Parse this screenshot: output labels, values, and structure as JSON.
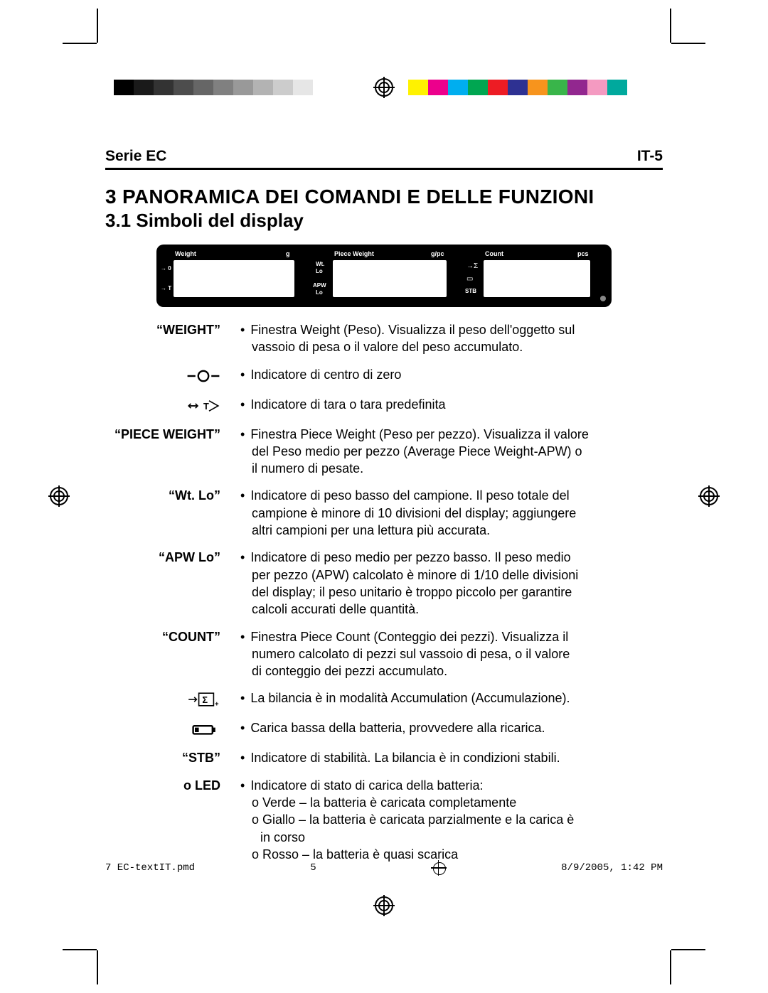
{
  "registration": {
    "gray_swatches": [
      "#000000",
      "#1a1a1a",
      "#333333",
      "#4d4d4d",
      "#666666",
      "#808080",
      "#999999",
      "#b3b3b3",
      "#cccccc",
      "#e6e6e6",
      "#ffffff"
    ],
    "color_swatches": [
      "#fff200",
      "#ec008c",
      "#00aeef",
      "#00a651",
      "#ed1c24",
      "#2e3192",
      "#f7941d",
      "#39b54a",
      "#92278f",
      "#f49ac1",
      "#00a99d"
    ]
  },
  "header": {
    "series": "Serie EC",
    "page_code": "IT-5"
  },
  "titles": {
    "section": "3 PANORAMICA DEI COMANDI E DELLE FUNZIONI",
    "subsection": "3.1 Simboli del display"
  },
  "panel": {
    "windows": [
      {
        "label": "Weight",
        "unit": "g"
      },
      {
        "label": "Piece Weight",
        "unit": "g/pc"
      },
      {
        "label": "Count",
        "unit": "pcs"
      }
    ],
    "left_annot_top": "→ 0 ←",
    "left_annot_bot": "→ T",
    "mid_annot_top": "Wt.",
    "mid_annot_top2": "Lo",
    "mid_annot_bot": "APW",
    "mid_annot_bot2": "Lo",
    "right_annot_top": "→Σ",
    "right_annot_mid": "▭",
    "right_annot_bot": "STB"
  },
  "rows": [
    {
      "term_type": "text",
      "term": "“WEIGHT”",
      "lines": [
        "Finestra Weight (Peso). Visualizza il peso dell'oggetto sul",
        "vassoio di pesa o il valore del peso accumulato."
      ]
    },
    {
      "term_type": "icon",
      "icon": "zero",
      "lines": [
        "Indicatore di centro di zero"
      ]
    },
    {
      "term_type": "icon",
      "icon": "tare",
      "lines": [
        "Indicatore di tara o tara predefinita"
      ]
    },
    {
      "term_type": "text",
      "term": "“PIECE WEIGHT”",
      "lines": [
        "Finestra Piece Weight (Peso per pezzo). Visualizza il valore",
        "del Peso medio per pezzo (Average Piece Weight-APW) o",
        "il numero di pesate."
      ]
    },
    {
      "term_type": "text",
      "term": "“Wt. Lo”",
      "lines": [
        "Indicatore di peso basso del campione. Il peso totale del",
        "campione è minore di 10 divisioni del display; aggiungere",
        "altri campioni per una lettura più accurata."
      ]
    },
    {
      "term_type": "text",
      "term": "“APW Lo”",
      "lines": [
        "Indicatore di peso medio per pezzo basso. Il peso medio",
        "per pezzo (APW) calcolato è minore di 1/10 delle divisioni",
        "del display; il peso unitario è troppo piccolo per garantire",
        "calcoli accurati delle quantità."
      ]
    },
    {
      "term_type": "text",
      "term": "“COUNT”",
      "lines": [
        "Finestra Piece Count (Conteggio dei pezzi). Visualizza il",
        "numero calcolato di pezzi sul vassoio di pesa, o il valore",
        "di conteggio dei pezzi accumulato."
      ]
    },
    {
      "term_type": "icon",
      "icon": "sigma",
      "lines": [
        "La bilancia è in modalità Accumulation (Accumulazione)."
      ]
    },
    {
      "term_type": "icon",
      "icon": "battery",
      "lines": [
        "Carica bassa della batteria, provvedere alla ricarica."
      ]
    },
    {
      "term_type": "text",
      "term": "“STB”",
      "lines": [
        "Indicatore di stabilità. La bilancia è in condizioni stabili."
      ]
    },
    {
      "term_type": "text",
      "term": "o LED",
      "lines": [
        "Indicatore di stato di carica della batteria:"
      ],
      "sublines": [
        "o Verde – la batteria è caricata completamente",
        "o Giallo – la batteria è caricata parzialmente e la carica è",
        "o Rosso – la batteria è quasi scarica"
      ],
      "sublines_cont": {
        "1": "in corso"
      }
    }
  ],
  "footer": {
    "file": "7 EC-textIT.pmd",
    "page": "5",
    "date": "8/9/2005, 1:42 PM"
  }
}
